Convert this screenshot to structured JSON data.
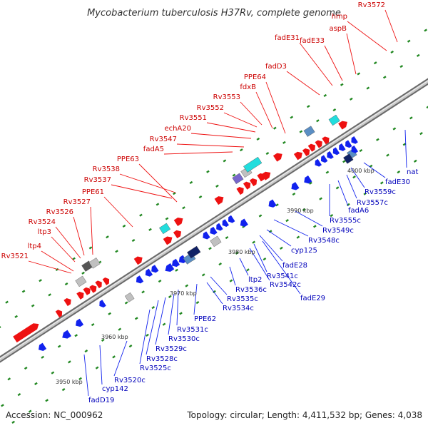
{
  "header": {
    "title": "Mycobacterium tuberculosis H37Rv, complete genome"
  },
  "footer": {
    "accession": "Accession: NC_000962",
    "summary": "Topology: circular; Length: 4,411,532 bp; Genes: 4,038"
  },
  "colors": {
    "forward": "#ee1111",
    "reverse": "#1122ee",
    "backbone": "#9a9a9a",
    "forward_label": "#cc0000",
    "reverse_label": "#0000bb",
    "marker": "#228822",
    "cyan": "#22dddd",
    "steel": "#5a8ec4",
    "navy": "#112266",
    "grey": "#c0c0c0",
    "purple": "#7766cc",
    "dark_grey": "#555555"
  },
  "scale": {
    "unit": "kbp",
    "ticks": [
      {
        "kbp": 3950,
        "label": "3950 kbp"
      },
      {
        "kbp": 3960,
        "label": "3960 kbp"
      },
      {
        "kbp": 3970,
        "label": "3970 kbp"
      },
      {
        "kbp": 3980,
        "label": "3980 kbp"
      },
      {
        "kbp": 3990,
        "label": "3990 kbp"
      },
      {
        "kbp": 4000,
        "label": "4000 kbp"
      }
    ]
  },
  "forward_labels": [
    "Rv3521",
    "ltp4",
    "ltp3",
    "Rv3524",
    "Rv3526",
    "Rv3527",
    "PPE61",
    "Rv3537",
    "Rv3538",
    "PPE63",
    "fadA5",
    "Rv3547",
    "echA20",
    "Rv3551",
    "Rv3552",
    "Rv3553",
    "fdxB",
    "PPE64",
    "fadD3",
    "fadE31",
    "fadE33",
    "aspB",
    "hmp",
    "Rv3572"
  ],
  "reverse_labels": [
    "fadD19",
    "cyp142",
    "Rv3520c",
    "Rv3525c",
    "Rv3528c",
    "Rv3529c",
    "Rv3530c",
    "Rv3531c",
    "PPE62",
    "Rv3534c",
    "Rv3535c",
    "Rv3536c",
    "ltp2",
    "fadE29",
    "Rv3542c",
    "Rv3541c",
    "fadE28",
    "cyp125",
    "Rv3548c",
    "Rv3549c",
    "Rv3555c",
    "fadA6",
    "Rv3557c",
    "Rv3559c",
    "fadE30",
    "nat"
  ]
}
